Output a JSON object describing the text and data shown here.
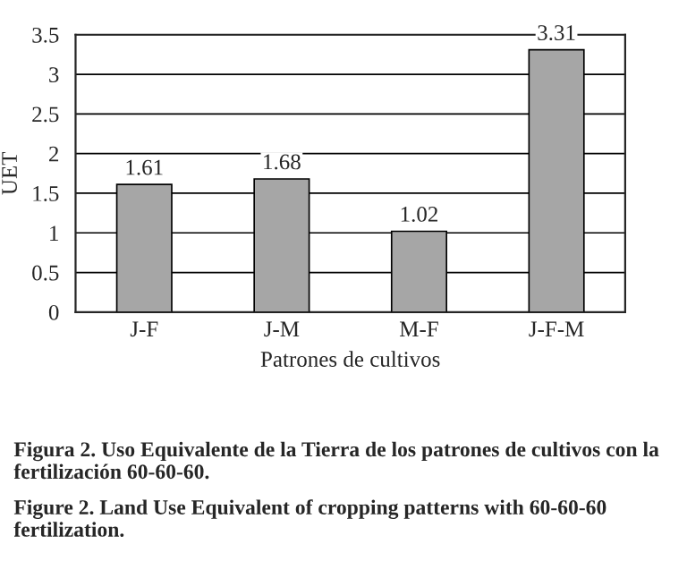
{
  "chart_data": {
    "type": "bar",
    "xlabel": "Patrones de cultivos",
    "ylabel": "UET",
    "categories": [
      "J-F",
      "J-M",
      "M-F",
      "J-F-M"
    ],
    "values": [
      1.61,
      1.68,
      1.02,
      3.31
    ],
    "color": "#a6a6a6",
    "ylim": [
      0,
      3.5
    ],
    "yticks": [
      0,
      0.5,
      1,
      1.5,
      2,
      2.5,
      3,
      3.5
    ],
    "grid": "y",
    "data_labels": true,
    "annotations": [
      "Figura 2. Uso Equivalente de la Tierra de los patrones de cultivos con la fertilización 60-60-60.",
      "Figure 2. Land Use Equivalent of cropping patterns with 60-60-60 fertilization."
    ]
  }
}
